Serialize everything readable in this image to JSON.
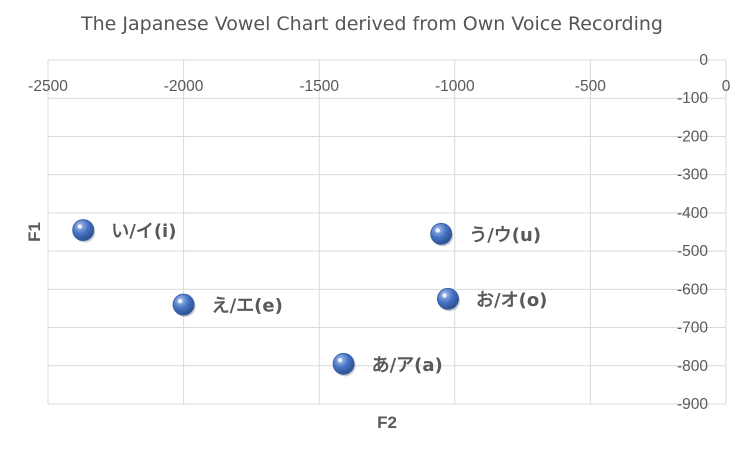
{
  "chart_data": {
    "type": "scatter",
    "title": "The Japanese Vowel Chart derived from Own Voice Recording",
    "xlabel": "F2",
    "ylabel": "F1",
    "xlim": [
      -2500,
      0
    ],
    "ylim": [
      -900,
      0
    ],
    "x_ticks": [
      -2500,
      -2000,
      -1500,
      -1000,
      -500,
      0
    ],
    "y_ticks": [
      0,
      -100,
      -200,
      -300,
      -400,
      -500,
      -600,
      -700,
      -800,
      -900
    ],
    "x_tick_labels": [
      "-2500",
      "-2000",
      "-1500",
      "-1000",
      "-500",
      "0"
    ],
    "y_tick_labels": [
      "0",
      "-100",
      "-200",
      "-300",
      "-400",
      "-500",
      "-600",
      "-700",
      "-800",
      "-900"
    ],
    "grid": true,
    "marker_color": "#4472c4",
    "points": [
      {
        "label": "い/イ(i)",
        "x": -2370,
        "y": -445
      },
      {
        "label": "う/ウ(u)",
        "x": -1050,
        "y": -455
      },
      {
        "label": "え/エ(e)",
        "x": -2000,
        "y": -640
      },
      {
        "label": "お/オ(o)",
        "x": -1025,
        "y": -625
      },
      {
        "label": "あ/ア(a)",
        "x": -1410,
        "y": -795
      }
    ]
  }
}
